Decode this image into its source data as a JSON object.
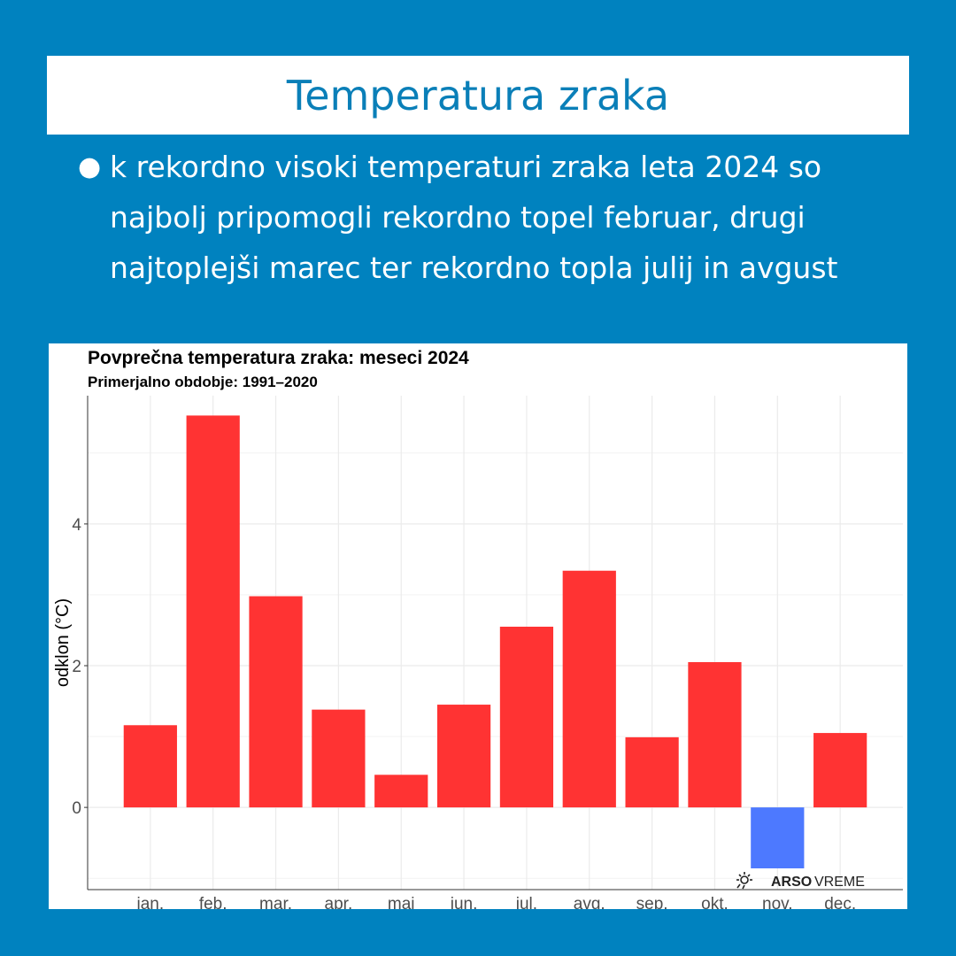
{
  "header": {
    "title": "Temperatura zraka"
  },
  "bullet": {
    "text": "k rekordno visoki temperaturi zraka leta 2024 so najbolj pripomogli rekordno topel februar, drugi najtoplejši marec ter rekordno topla julij in avgust"
  },
  "logo": {
    "brand": "ARSO",
    "product": "VREME"
  },
  "colors": {
    "background": "#0082bf",
    "positive": "#ff3333",
    "negative": "#4d79ff"
  },
  "chart_data": {
    "type": "bar",
    "title": "Povprečna temperatura zraka: meseci 2024",
    "subtitle": "Primerjalno obdobje: 1991–2020",
    "xlabel": "",
    "ylabel": "odklon (°C)",
    "categories": [
      "jan.",
      "feb.",
      "mar.",
      "apr.",
      "maj",
      "jun.",
      "jul.",
      "avg.",
      "sep.",
      "okt.",
      "nov.",
      "dec."
    ],
    "values": [
      1.16,
      5.53,
      2.98,
      1.38,
      0.46,
      1.45,
      2.55,
      3.34,
      0.99,
      2.05,
      -0.86,
      1.05
    ],
    "yticks": [
      0,
      2,
      4
    ],
    "ylim": [
      -1.16,
      5.81
    ],
    "grid": true
  }
}
